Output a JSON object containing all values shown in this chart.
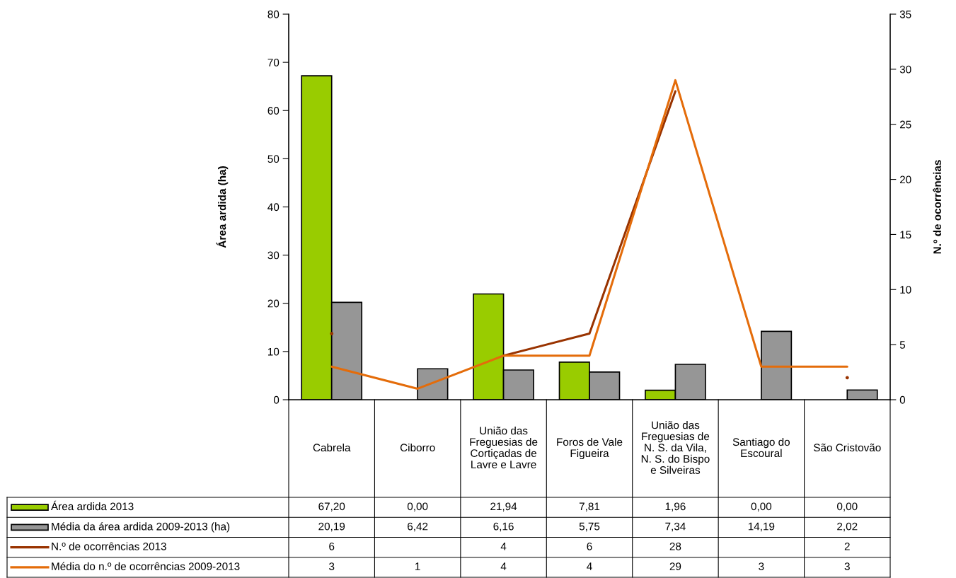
{
  "chart_data": {
    "type": "bar",
    "ylabel": "Área ardida (ha)",
    "y2label": "N.º de ocorrências",
    "categories": [
      "Cabrela",
      "Ciborro",
      "União das Freguesias de Cortiçadas de Lavre e Lavre",
      "Foros de Vale Figueira",
      "União das Freguesias de N. S. da Vila, N. S. do Bispo e Silveiras",
      "Santiago do Escoural",
      "São Cristovão"
    ],
    "ylim": [
      0,
      80
    ],
    "yticks": [
      0,
      10,
      20,
      30,
      40,
      50,
      60,
      70,
      80
    ],
    "y2lim": [
      0,
      35
    ],
    "y2ticks": [
      0,
      5,
      10,
      15,
      20,
      25,
      30,
      35
    ],
    "grid": false,
    "legend": "bottom left",
    "series": [
      {
        "name": "Área ardida 2013",
        "color": "#99cc00",
        "values": [
          67.2,
          0.0,
          21.94,
          7.81,
          1.96,
          0.0,
          0.0
        ],
        "value_labels": [
          "67,20",
          "0,00",
          "21,94",
          "7,81",
          "1,96",
          "0,00",
          "0,00"
        ]
      },
      {
        "name": "Média da área ardida 2009-2013 (ha)",
        "color": "#969696",
        "values": [
          20.19,
          6.42,
          6.16,
          5.75,
          7.34,
          14.19,
          2.02
        ],
        "value_labels": [
          "20,19",
          "6,42",
          "6,16",
          "5,75",
          "7,34",
          "14,19",
          "2,02"
        ]
      },
      {
        "name": "N.º de ocorrências 2013",
        "type": "line",
        "axis": "y2",
        "color": "#993300",
        "values": [
          6,
          null,
          4,
          6,
          28,
          null,
          2
        ],
        "value_labels": [
          "6",
          null,
          "4",
          "6",
          "28",
          null,
          "2"
        ]
      },
      {
        "name": "Média do n.º de ocorrências 2009-2013",
        "type": "line",
        "axis": "y2",
        "color": "#e46c0a",
        "values": [
          3,
          1,
          4,
          4,
          29,
          3,
          3
        ],
        "value_labels": [
          "3",
          "1",
          "4",
          "4",
          "29",
          "3",
          "3"
        ]
      }
    ]
  }
}
